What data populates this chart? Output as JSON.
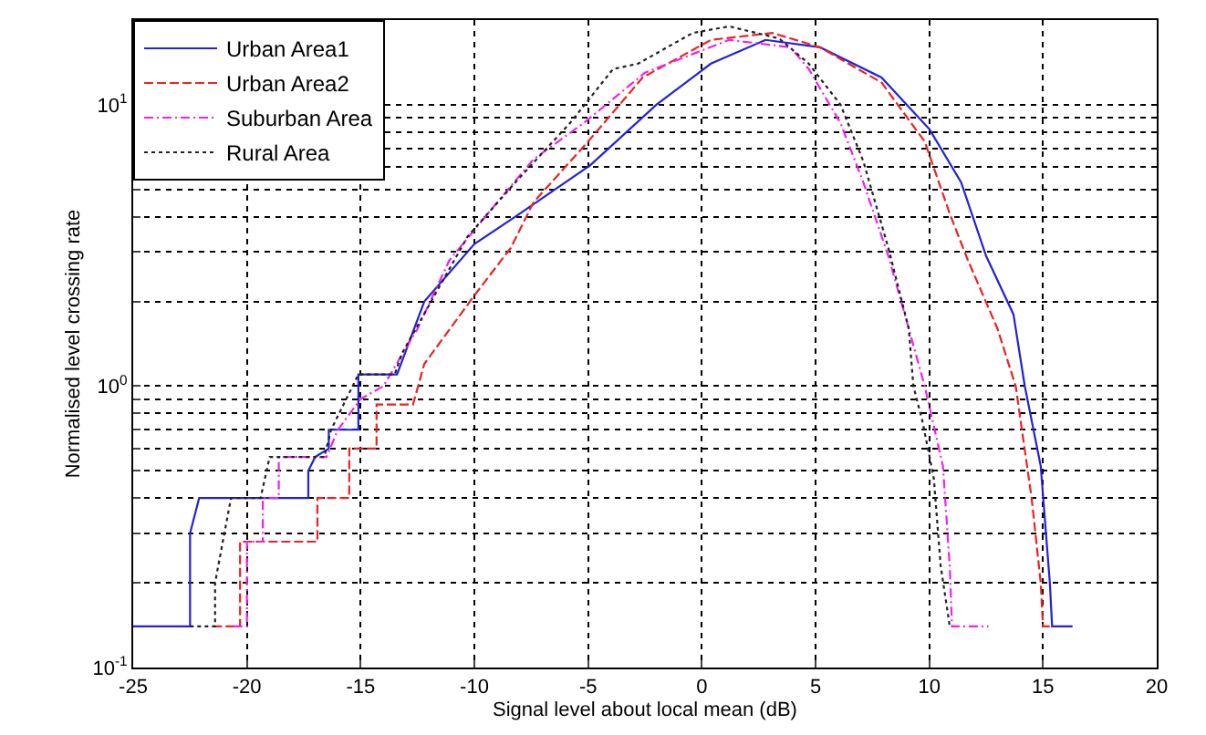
{
  "chart_data": {
    "type": "line",
    "xlabel": "Signal level about local mean (dB)",
    "ylabel": "Normalised level crossing rate",
    "log": "y",
    "grid": true,
    "legend": "top left",
    "xlim": [
      -25,
      20
    ],
    "xticks": [
      -25,
      -20,
      -15,
      -10,
      -5,
      0,
      5,
      10,
      15,
      20
    ],
    "ylim": [
      0.1,
      20
    ],
    "yticks": [
      {
        "value": 0.1,
        "label": "10$^{-1}$"
      },
      {
        "value": 0.2,
        "label": null
      },
      {
        "value": 0.3,
        "label": null
      },
      {
        "value": 0.4,
        "label": null
      },
      {
        "value": 0.5,
        "label": null
      },
      {
        "value": 0.6,
        "label": null
      },
      {
        "value": 0.7,
        "label": null
      },
      {
        "value": 0.8,
        "label": null
      },
      {
        "value": 0.9,
        "label": null
      },
      {
        "value": 1,
        "label": "10$^{0}$"
      },
      {
        "value": 2,
        "label": null
      },
      {
        "value": 3,
        "label": null
      },
      {
        "value": 4,
        "label": null
      },
      {
        "value": 5,
        "label": null
      },
      {
        "value": 6,
        "label": null
      },
      {
        "value": 7,
        "label": null
      },
      {
        "value": 8,
        "label": null
      },
      {
        "value": 9,
        "label": null
      },
      {
        "value": 10,
        "label": "10$^{1}$"
      }
    ],
    "series": [
      {
        "name": "Urban Area1",
        "color": "#2222dd",
        "line_style": "solid",
        "x": [
          -25,
          -22.5,
          -22.5,
          -22.1,
          -17.3,
          -17.3,
          -17.0,
          -16.4,
          -16.4,
          -15.1,
          -15.1,
          -13.4,
          -12.2,
          -10.0,
          -8.2,
          -4.9,
          -2.0,
          0.4,
          2.8,
          5.2,
          7.9,
          10.0,
          11.4,
          12.5,
          13.7,
          14.2,
          14.9,
          15.3,
          15.4,
          16.3
        ],
        "values": [
          0.14,
          0.14,
          0.3,
          0.4,
          0.4,
          0.5,
          0.56,
          0.6,
          0.7,
          0.7,
          1.1,
          1.1,
          2.0,
          3.2,
          4.0,
          6.1,
          10,
          14,
          17,
          16,
          12.5,
          8.2,
          5.3,
          2.9,
          1.8,
          1.0,
          0.52,
          0.2,
          0.14,
          0.14
        ]
      },
      {
        "name": "Urban Area2",
        "color": "#ee2222",
        "line_style": "dashed",
        "x": [
          -21.5,
          -20.3,
          -20.3,
          -16.9,
          -16.9,
          -15.5,
          -15.5,
          -14.3,
          -14.3,
          -12.7,
          -12.2,
          -10.0,
          -8.4,
          -7.4,
          -5.0,
          -2.6,
          0.4,
          3.1,
          5.2,
          7.9,
          9.8,
          10.9,
          11.7,
          13.0,
          13.8,
          14.5,
          14.9,
          15.0,
          15.3
        ],
        "values": [
          0.14,
          0.14,
          0.28,
          0.28,
          0.4,
          0.4,
          0.6,
          0.6,
          0.86,
          0.86,
          1.2,
          2.1,
          3.1,
          4.5,
          7.4,
          12.5,
          17,
          18,
          16,
          12,
          7.4,
          4.1,
          2.8,
          1.6,
          1.0,
          0.4,
          0.2,
          0.14,
          0.14
        ]
      },
      {
        "name": "Suburban Area",
        "color": "#ee22ee",
        "line_style": "dashdot",
        "x": [
          -20.6,
          -20.0,
          -20.0,
          -19.3,
          -19.3,
          -18.6,
          -18.6,
          -16.5,
          -16.0,
          -15.0,
          -14.0,
          -12.5,
          -11.1,
          -9.2,
          -7.4,
          -5.2,
          -2.5,
          1.2,
          3.9,
          4.7,
          6.1,
          7.1,
          8.2,
          9.1,
          9.8,
          10.6,
          10.9,
          11.0,
          12.6
        ],
        "values": [
          0.14,
          0.14,
          0.28,
          0.28,
          0.4,
          0.4,
          0.56,
          0.56,
          0.7,
          0.9,
          1.0,
          1.6,
          2.8,
          4.3,
          6.4,
          8.6,
          13,
          17,
          16,
          13.4,
          8.6,
          5.3,
          2.9,
          1.6,
          1.0,
          0.52,
          0.23,
          0.14,
          0.14
        ]
      },
      {
        "name": "Rural Area",
        "color": "#222222",
        "line_style": "dotted",
        "x": [
          -22.5,
          -21.4,
          -21.4,
          -20.7,
          -19.4,
          -19.0,
          -16.6,
          -16.3,
          -15.1,
          -13.5,
          -13.2,
          -10.3,
          -8.2,
          -5.8,
          -3.9,
          -2.8,
          -0.4,
          1.2,
          3.4,
          4.7,
          6.1,
          7.1,
          8.2,
          9.1,
          9.3,
          9.7,
          10.2,
          10.5,
          10.9
        ],
        "values": [
          0.14,
          0.14,
          0.2,
          0.4,
          0.4,
          0.56,
          0.56,
          0.7,
          1.1,
          1.1,
          1.3,
          3.4,
          5.3,
          8.6,
          13.4,
          14,
          18,
          19,
          17.2,
          14,
          10,
          6.3,
          3.1,
          1.6,
          1.0,
          0.75,
          0.47,
          0.23,
          0.14
        ]
      }
    ]
  }
}
